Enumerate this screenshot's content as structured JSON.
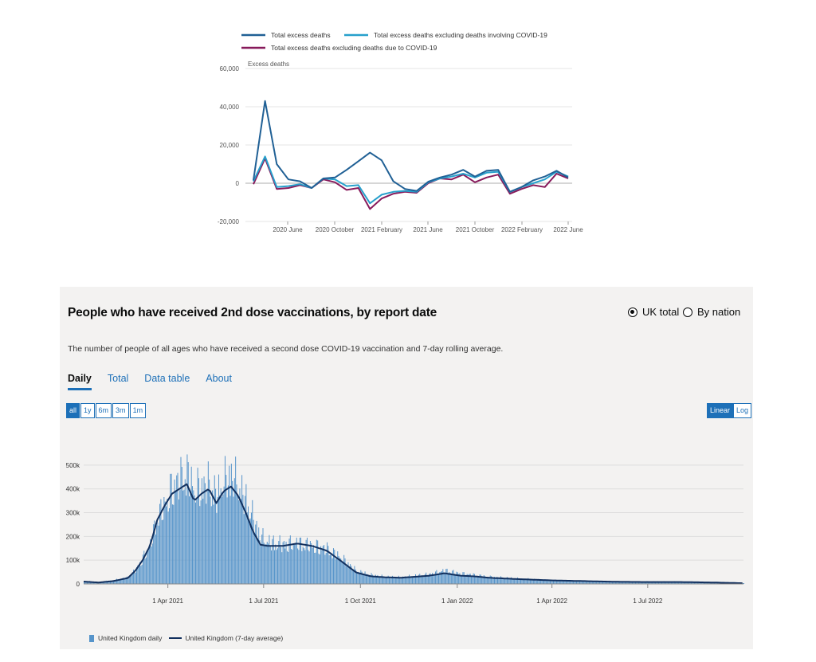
{
  "chart_data": [
    {
      "type": "line",
      "ylabel": "Excess deaths",
      "ylim": [
        -20000,
        60000
      ],
      "y_ticks": [
        60000,
        40000,
        20000,
        0,
        -20000
      ],
      "y_tick_labels": [
        "60,000",
        "40,000",
        "20,000",
        "0",
        "-20,000"
      ],
      "x_tick_labels": [
        "2020 June",
        "2020 October",
        "2021 February",
        "2021 June",
        "2021 October",
        "2022 February",
        "2022 June"
      ],
      "legend_position": "top",
      "grid": true,
      "series": [
        {
          "name": "Total excess deaths",
          "color": "#206095",
          "values": [
            1500,
            43000,
            10000,
            2000,
            1000,
            -2500,
            2500,
            3000,
            7000,
            11500,
            16000,
            12000,
            1000,
            -3000,
            -4000,
            800,
            3000,
            4500,
            7000,
            3500,
            6500,
            7000,
            -4500,
            -2000,
            1500,
            3500,
            6500,
            3000
          ]
        },
        {
          "name": "Total excess deaths excluding deaths involving COVID-19",
          "color": "#27a0cc",
          "values": [
            1000,
            14000,
            -2000,
            -1500,
            -500,
            -2500,
            2500,
            2000,
            -1500,
            -1000,
            -10500,
            -6000,
            -4500,
            -4000,
            -4500,
            500,
            2500,
            3500,
            5000,
            3000,
            5500,
            6000,
            -4500,
            -2000,
            0,
            2000,
            6000,
            3500
          ]
        },
        {
          "name": "Total excess deaths excluding deaths due to COVID-19",
          "color": "#871a5b",
          "values": [
            -500,
            13000,
            -3000,
            -2500,
            -1000,
            -2500,
            2000,
            500,
            -3500,
            -2500,
            -13500,
            -8000,
            -5500,
            -4500,
            -5000,
            0,
            2500,
            2000,
            4500,
            500,
            3000,
            4500,
            -5500,
            -3000,
            -1000,
            -2000,
            5000,
            2500
          ]
        }
      ]
    },
    {
      "type": "bar",
      "ylim": [
        0,
        550000
      ],
      "y_ticks": [
        0,
        100000,
        200000,
        300000,
        400000,
        500000
      ],
      "y_tick_labels": [
        "0",
        "100k",
        "200k",
        "300k",
        "400k",
        "500k"
      ],
      "x_tick_labels": [
        "1 Apr 2021",
        "1 Jul 2021",
        "1 Oct 2021",
        "1 Jan 2022",
        "1 Apr 2022",
        "1 Jul 2022"
      ],
      "x_start": "2021-01-11",
      "x_end": "2022-09-30",
      "series": [
        {
          "name": "United Kingdom daily",
          "type": "bar",
          "color": "#5694ca",
          "description": "daily values, one bar per day, sampled every 4 days",
          "dates": [
            "2021-01-11",
            "2021-01-25",
            "2021-02-08",
            "2021-02-22",
            "2021-03-01",
            "2021-03-08",
            "2021-03-15",
            "2021-03-22",
            "2021-03-29",
            "2021-04-05",
            "2021-04-12",
            "2021-04-19",
            "2021-04-26",
            "2021-05-03",
            "2021-05-10",
            "2021-05-17",
            "2021-05-24",
            "2021-05-31",
            "2021-06-07",
            "2021-06-14",
            "2021-06-21",
            "2021-06-28",
            "2021-07-05",
            "2021-07-19",
            "2021-08-02",
            "2021-08-16",
            "2021-08-30",
            "2021-09-13",
            "2021-09-27",
            "2021-10-11",
            "2021-10-25",
            "2021-11-08",
            "2021-11-22",
            "2021-12-06",
            "2021-12-20",
            "2022-01-03",
            "2022-01-17",
            "2022-01-31",
            "2022-03-01",
            "2022-04-01",
            "2022-05-01",
            "2022-06-01",
            "2022-07-01",
            "2022-08-01",
            "2022-09-01",
            "2022-09-30"
          ],
          "values": [
            12000,
            8000,
            15000,
            28000,
            60000,
            110000,
            170000,
            290000,
            340000,
            420000,
            450000,
            480000,
            400000,
            420000,
            430000,
            380000,
            440000,
            470000,
            420000,
            360000,
            280000,
            200000,
            180000,
            170000,
            175000,
            165000,
            150000,
            110000,
            55000,
            38000,
            30000,
            28000,
            35000,
            42000,
            58000,
            45000,
            38000,
            30000,
            22000,
            15000,
            12000,
            9000,
            10000,
            9000,
            7000,
            4000
          ]
        },
        {
          "name": "United Kingdom (7-day average)",
          "type": "line",
          "color": "#12305e",
          "dates": [
            "2021-01-11",
            "2021-01-25",
            "2021-02-08",
            "2021-02-22",
            "2021-03-01",
            "2021-03-08",
            "2021-03-15",
            "2021-03-22",
            "2021-03-29",
            "2021-04-05",
            "2021-04-12",
            "2021-04-19",
            "2021-04-26",
            "2021-05-03",
            "2021-05-10",
            "2021-05-17",
            "2021-05-24",
            "2021-05-31",
            "2021-06-07",
            "2021-06-14",
            "2021-06-21",
            "2021-06-28",
            "2021-07-05",
            "2021-07-19",
            "2021-08-02",
            "2021-08-16",
            "2021-08-30",
            "2021-09-13",
            "2021-09-27",
            "2021-10-11",
            "2021-10-25",
            "2021-11-08",
            "2021-11-22",
            "2021-12-06",
            "2021-12-20",
            "2022-01-03",
            "2022-01-17",
            "2022-01-31",
            "2022-03-01",
            "2022-04-01",
            "2022-05-01",
            "2022-06-01",
            "2022-07-01",
            "2022-08-01",
            "2022-09-01",
            "2022-09-30"
          ],
          "values": [
            10000,
            6000,
            12000,
            25000,
            55000,
            100000,
            160000,
            270000,
            330000,
            380000,
            400000,
            420000,
            350000,
            380000,
            400000,
            340000,
            390000,
            410000,
            370000,
            300000,
            220000,
            165000,
            160000,
            160000,
            170000,
            160000,
            140000,
            95000,
            48000,
            32000,
            28000,
            26000,
            30000,
            35000,
            45000,
            35000,
            32000,
            26000,
            20000,
            15000,
            12000,
            9000,
            8000,
            8000,
            6000,
            3000
          ]
        }
      ]
    }
  ],
  "dashboard": {
    "title": "People who have received 2nd dose vaccinations, by report date",
    "description": "The number of people of all ages who have received a second dose COVID-19 vaccination and 7-day rolling average.",
    "radios": [
      "UK total",
      "By nation"
    ],
    "tabs": [
      "Daily",
      "Total",
      "Data table",
      "About"
    ],
    "ranges": [
      "all",
      "1y",
      "6m",
      "3m",
      "1m"
    ],
    "scales": [
      "Linear",
      "Log"
    ]
  }
}
